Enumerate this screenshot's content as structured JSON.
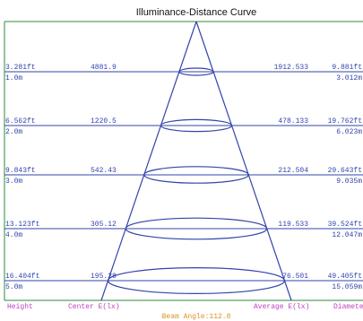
{
  "title": "Illuminance-Distance Curve",
  "axis_labels": {
    "height": "Height",
    "center": "Center E(lx)",
    "average": "Average E(lx)",
    "diameter": "Diamete"
  },
  "beam_angle": "Beam Angle:112.8",
  "colors": {
    "frame": "#2e8b3a",
    "lines": "#3344aa",
    "text": "#3344aa",
    "axis_names": "#c040c0",
    "beam_label": "#e09020"
  },
  "rows": [
    {
      "height_ft": "3.281ft",
      "height_m": "1.0m",
      "center": "4881.9",
      "average": "1912.533",
      "diameter_ft": "9.881ft",
      "diameter_m": "3.012m"
    },
    {
      "height_ft": "6.562ft",
      "height_m": "2.0m",
      "center": "1220.5",
      "average": "478.133",
      "diameter_ft": "19.762ft",
      "diameter_m": "6.023m"
    },
    {
      "height_ft": "9.843ft",
      "height_m": "3.0m",
      "center": "542.43",
      "average": "212.504",
      "diameter_ft": "29.643ft",
      "diameter_m": "9.035m"
    },
    {
      "height_ft": "13.123ft",
      "height_m": "4.0m",
      "center": "305.12",
      "average": "119.533",
      "diameter_ft": "39.524ft",
      "diameter_m": "12.047m"
    },
    {
      "height_ft": "16.404ft",
      "height_m": "5.0m",
      "center": "195.28",
      "average": "76.501",
      "diameter_ft": "49.405ft",
      "diameter_m": "15.059m"
    }
  ]
}
